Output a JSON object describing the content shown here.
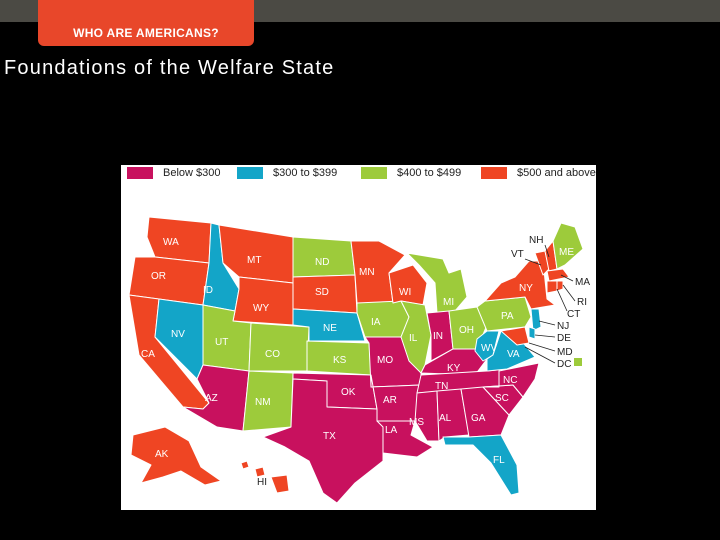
{
  "header": {
    "tab_label": "WHO ARE AMERICANS?"
  },
  "slide": {
    "title": "Foundations of the Welfare State"
  },
  "colors": {
    "magenta": "#c8115e",
    "blue": "#13a5c8",
    "green": "#9dcb3b",
    "orange": "#ef4523"
  },
  "legend": [
    {
      "label": "Below $300",
      "color": "#c8115e"
    },
    {
      "label": "$300 to $399",
      "color": "#13a5c8"
    },
    {
      "label": "$400 to $499",
      "color": "#9dcb3b"
    },
    {
      "label": "$500 and above",
      "color": "#ef4523"
    }
  ],
  "states": {
    "WA": "WA",
    "OR": "OR",
    "CA": "CA",
    "ID": "ID",
    "NV": "NV",
    "MT": "MT",
    "WY": "WY",
    "UT": "UT",
    "AZ": "AZ",
    "CO": "CO",
    "NM": "NM",
    "ND": "ND",
    "SD": "SD",
    "NE": "NE",
    "KS": "KS",
    "OK": "OK",
    "TX": "TX",
    "MN": "MN",
    "IA": "IA",
    "MO": "MO",
    "AR": "AR",
    "LA": "LA",
    "WI": "WI",
    "IL": "IL",
    "MS": "MS",
    "MI": "MI",
    "IN": "IN",
    "KY": "KY",
    "TN": "TN",
    "AL": "AL",
    "OH": "OH",
    "GA": "GA",
    "FL": "FL",
    "WV": "WV",
    "VA": "VA",
    "NC": "NC",
    "SC": "SC",
    "PA": "PA",
    "NY": "NY",
    "VT": "VT",
    "NH": "NH",
    "ME": "ME",
    "MA": "MA",
    "RI": "RI",
    "CT": "CT",
    "NJ": "NJ",
    "DE": "DE",
    "MD": "MD",
    "DC": "DC",
    "AK": "AK",
    "HI": "HI"
  }
}
